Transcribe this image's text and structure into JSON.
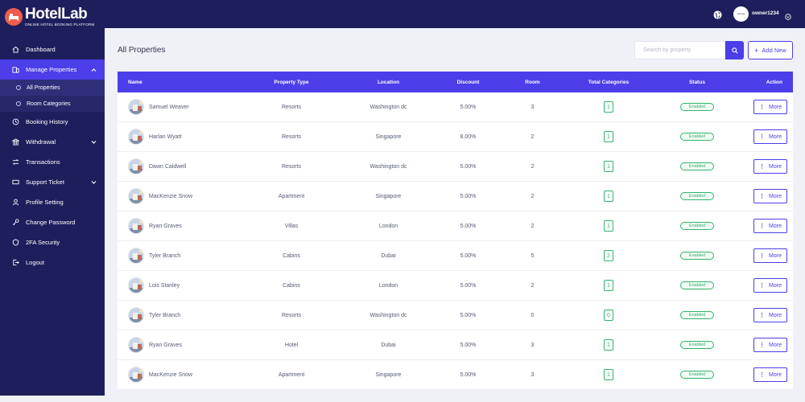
{
  "brand": {
    "title": "HotelLab",
    "subtitle": "ONLINE HOTEL BOOKING PLATFORM",
    "accent": "#4c3ee9",
    "sidebar_bg": "#1f1e5c",
    "logo_color": "#ef5d51"
  },
  "topbar": {
    "username": "owner1234",
    "avatar_text": "site logo"
  },
  "sidebar": {
    "items": [
      {
        "label": "Dashboard",
        "icon": "home-icon"
      },
      {
        "label": "Manage Properties",
        "icon": "building-icon",
        "active": true
      },
      {
        "label": "Booking History",
        "icon": "history-icon"
      },
      {
        "label": "Withdrawal",
        "icon": "bank-icon"
      },
      {
        "label": "Transactions",
        "icon": "exchange-icon"
      },
      {
        "label": "Support Ticket",
        "icon": "ticket-icon"
      },
      {
        "label": "Profile Setting",
        "icon": "user-icon"
      },
      {
        "label": "Change Password",
        "icon": "key-icon"
      },
      {
        "label": "2FA Security",
        "icon": "shield-icon"
      },
      {
        "label": "Logout",
        "icon": "logout-icon"
      }
    ],
    "subitems": [
      {
        "label": "All Properties"
      },
      {
        "label": "Room Categories"
      }
    ]
  },
  "main": {
    "title": "All Properties",
    "search_placeholder": "Search by property",
    "add_label": "Add New"
  },
  "table": {
    "headers": [
      "Name",
      "Property Type",
      "Location",
      "Discount",
      "Room",
      "Total Categories",
      "Status",
      "Action"
    ],
    "rows": [
      {
        "name": "Samuel Weaver",
        "type": "Resorts",
        "location": "Washington dc",
        "discount": "5.00%",
        "room": "3",
        "categories": "1",
        "status": "Enabled",
        "action": "More"
      },
      {
        "name": "Harlan Wyatt",
        "type": "Resorts",
        "location": "Singapore",
        "discount": "8.00%",
        "room": "2",
        "categories": "1",
        "status": "Enabled",
        "action": "More"
      },
      {
        "name": "Dawn Caldwell",
        "type": "Resorts",
        "location": "Washington dc",
        "discount": "5.00%",
        "room": "2",
        "categories": "1",
        "status": "Enabled",
        "action": "More"
      },
      {
        "name": "MacKenzie Snow",
        "type": "Apartment",
        "location": "Singapore",
        "discount": "5.00%",
        "room": "2",
        "categories": "1",
        "status": "Enabled",
        "action": "More"
      },
      {
        "name": "Ryan Graves",
        "type": "Villas",
        "location": "London",
        "discount": "5.00%",
        "room": "2",
        "categories": "1",
        "status": "Enabled",
        "action": "More"
      },
      {
        "name": "Tyler Branch",
        "type": "Cabins",
        "location": "Dubai",
        "discount": "5.00%",
        "room": "5",
        "categories": "2",
        "status": "Enabled",
        "action": "More"
      },
      {
        "name": "Lois Stanley",
        "type": "Cabins",
        "location": "London",
        "discount": "5.00%",
        "room": "2",
        "categories": "1",
        "status": "Enabled",
        "action": "More"
      },
      {
        "name": "Tyler Branch",
        "type": "Resorts",
        "location": "Washington dc",
        "discount": "5.00%",
        "room": "0",
        "categories": "0",
        "status": "Enabled",
        "action": "More"
      },
      {
        "name": "Ryan Graves",
        "type": "Hotel",
        "location": "Dubai",
        "discount": "5.00%",
        "room": "3",
        "categories": "1",
        "status": "Enabled",
        "action": "More"
      },
      {
        "name": "MacKenzie Snow",
        "type": "Apartment",
        "location": "Singapore",
        "discount": "5.00%",
        "room": "3",
        "categories": "1",
        "status": "Enabled",
        "action": "More"
      }
    ]
  }
}
